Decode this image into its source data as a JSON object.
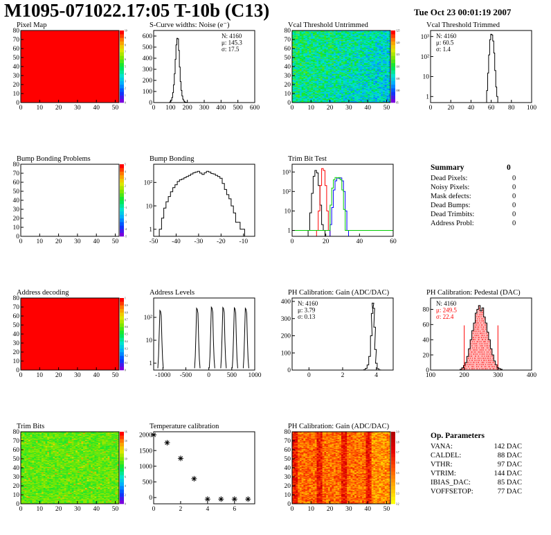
{
  "header": {
    "title": "M1095-071022.17:05 T-10b (C13)",
    "date": "Tue Oct 23 00:01:19 2007"
  },
  "colors": {
    "red": "#ff0000",
    "green": "#00cc00",
    "blue": "#0000ff",
    "black": "#000000",
    "pink_fill": "#ff9999"
  },
  "chart_data": [
    {
      "id": "pixel-map",
      "type": "heatmap",
      "title": "Pixel Map",
      "xlim": [
        0,
        52
      ],
      "ylim": [
        0,
        80
      ],
      "xticks": [
        "0",
        "10",
        "20",
        "30",
        "40",
        "50"
      ],
      "yticks": [
        "0",
        "10",
        "20",
        "30",
        "40",
        "50",
        "60",
        "70",
        "80"
      ],
      "zlim": [
        0,
        10
      ],
      "zticks": [
        "0",
        "1",
        "2",
        "3",
        "4",
        "5",
        "6",
        "7",
        "8",
        "9",
        "10"
      ],
      "fill": "uniform",
      "value": 10
    },
    {
      "id": "scurve-noise",
      "type": "bar",
      "title": "S-Curve widths: Noise (e⁻)",
      "xlim": [
        0,
        600
      ],
      "ylim": [
        0,
        650
      ],
      "xticks": [
        "0",
        "100",
        "200",
        "300",
        "400",
        "500",
        "600"
      ],
      "yticks": [
        "0",
        "100",
        "200",
        "300",
        "400",
        "500",
        "600"
      ],
      "stats": {
        "N": "4160",
        "mean": "145.3",
        "sigma": "17.5"
      },
      "stats_labels": {
        "N": "N: ",
        "mean": "μ: ",
        "sigma": "σ: "
      },
      "x": [
        90,
        95,
        100,
        105,
        110,
        115,
        120,
        125,
        130,
        135,
        140,
        145,
        150,
        155,
        160,
        165,
        170,
        175,
        180,
        185,
        190,
        195,
        200,
        205,
        210
      ],
      "values": [
        0,
        2,
        8,
        20,
        45,
        90,
        160,
        260,
        390,
        520,
        580,
        575,
        470,
        320,
        190,
        110,
        60,
        30,
        14,
        6,
        3,
        1,
        0,
        0,
        0
      ]
    },
    {
      "id": "vcal-untrimmed",
      "type": "heatmap",
      "title": "Vcal Threshold Untrimmed",
      "xlim": [
        0,
        52
      ],
      "ylim": [
        0,
        80
      ],
      "xticks": [
        "0",
        "10",
        "20",
        "30",
        "40",
        "50"
      ],
      "yticks": [
        "0",
        "10",
        "20",
        "30",
        "40",
        "50",
        "60",
        "70",
        "80"
      ],
      "zticks": [
        "95",
        "100",
        "105",
        "110",
        "115",
        "120",
        "125"
      ],
      "fill": "noise",
      "palette": "cyan-green"
    },
    {
      "id": "vcal-trimmed",
      "type": "bar",
      "title": "Vcal Threshold Trimmed",
      "log": true,
      "xlim": [
        0,
        100
      ],
      "ylim": [
        0.5,
        2000
      ],
      "xticks": [
        "0",
        "20",
        "40",
        "60",
        "80",
        "100"
      ],
      "yticks": [
        "1",
        "10",
        "10²",
        "10³"
      ],
      "stats": {
        "N": "4160",
        "mean": "60.5",
        "sigma": "1.4"
      },
      "stats_labels": {
        "N": "N: ",
        "mean": "μ: ",
        "sigma": "σ: "
      },
      "x": [
        56,
        57,
        58,
        59,
        60,
        61,
        62,
        63,
        64,
        65,
        66
      ],
      "values": [
        2,
        15,
        120,
        700,
        1300,
        1200,
        600,
        150,
        20,
        3,
        1
      ]
    },
    {
      "id": "bump-problems",
      "type": "heatmap",
      "title": "Bump Bonding Problems",
      "xlim": [
        0,
        52
      ],
      "ylim": [
        0,
        80
      ],
      "xticks": [
        "0",
        "10",
        "20",
        "30",
        "40",
        "50"
      ],
      "yticks": [
        "0",
        "10",
        "20",
        "30",
        "40",
        "50",
        "60",
        "70",
        "80"
      ],
      "zticks": [
        "-5",
        "-4",
        "-3",
        "-2",
        "-1",
        "0",
        "1",
        "2",
        "3",
        "4",
        "5"
      ],
      "fill": "empty"
    },
    {
      "id": "bump-bonding",
      "type": "bar",
      "title": "Bump Bonding",
      "log": true,
      "xlim": [
        -50,
        -5
      ],
      "ylim": [
        0.5,
        600
      ],
      "xticks": [
        "-50",
        "-40",
        "-30",
        "-20",
        "-10"
      ],
      "yticks": [
        "1",
        "10",
        "10²"
      ],
      "x": [
        -47,
        -46,
        -45,
        -44,
        -43,
        -42,
        -41,
        -40,
        -39,
        -38,
        -37,
        -36,
        -35,
        -34,
        -33,
        -32,
        -31,
        -30,
        -29,
        -28,
        -27,
        -26,
        -25,
        -24,
        -23,
        -22,
        -21,
        -20,
        -19,
        -18,
        -17,
        -16,
        -15,
        -14,
        -13,
        -12,
        -11,
        -10
      ],
      "values": [
        1,
        3,
        8,
        15,
        25,
        40,
        60,
        80,
        110,
        130,
        140,
        160,
        180,
        200,
        230,
        260,
        280,
        300,
        250,
        220,
        260,
        300,
        280,
        240,
        230,
        200,
        180,
        150,
        90,
        50,
        30,
        20,
        10,
        5,
        2,
        2,
        1,
        1
      ]
    },
    {
      "id": "trim-bit-test",
      "type": "line",
      "title": "Trim Bit Test",
      "log": true,
      "xlim": [
        0,
        60
      ],
      "ylim": [
        0.5,
        2500
      ],
      "xticks": [
        "0",
        "20",
        "40",
        "60"
      ],
      "yticks": [
        "1",
        "10",
        "10²",
        "10³"
      ],
      "series": [
        {
          "color": "#000000",
          "x": [
            10,
            11,
            12,
            13,
            14,
            15,
            16,
            17,
            18,
            19
          ],
          "values": [
            1,
            8,
            80,
            600,
            1200,
            900,
            200,
            20,
            2,
            1
          ]
        },
        {
          "color": "#ff0000",
          "x": [
            15,
            16,
            17,
            18,
            19,
            20,
            21,
            22
          ],
          "values": [
            1,
            10,
            200,
            1500,
            1200,
            200,
            10,
            1
          ]
        },
        {
          "color": "#0000ff",
          "x": [
            23,
            24,
            25,
            26,
            27,
            28,
            29,
            30,
            31,
            32,
            33
          ],
          "values": [
            2,
            15,
            120,
            350,
            500,
            480,
            500,
            350,
            100,
            10,
            1
          ]
        },
        {
          "color": "#00cc00",
          "x": [
            0,
            22,
            23,
            24,
            25,
            26,
            27,
            28,
            29,
            30,
            31,
            32,
            33,
            60
          ],
          "values": [
            1,
            1,
            20,
            150,
            400,
            520,
            500,
            520,
            400,
            120,
            12,
            1,
            1,
            1
          ]
        }
      ]
    },
    {
      "id": "address-decoding",
      "type": "heatmap",
      "title": "Address decoding",
      "xlim": [
        0,
        52
      ],
      "ylim": [
        0,
        80
      ],
      "xticks": [
        "0",
        "10",
        "20",
        "30",
        "40",
        "50"
      ],
      "yticks": [
        "0",
        "10",
        "20",
        "30",
        "40",
        "50",
        "60",
        "70",
        "80"
      ],
      "zticks": [
        "0",
        "0.1",
        "0.2",
        "0.3",
        "0.4",
        "0.5",
        "0.6",
        "0.7",
        "0.8",
        "0.9",
        "1"
      ],
      "fill": "uniform",
      "value": 1
    },
    {
      "id": "address-levels",
      "type": "bar",
      "title": "Address Levels",
      "log": true,
      "xlim": [
        -1200,
        1000
      ],
      "ylim": [
        0.5,
        700
      ],
      "xticks": [
        "-1000",
        "-500",
        "0",
        "500",
        "1000"
      ],
      "yticks": [
        "1",
        "10",
        "10²"
      ],
      "peaks": [
        -1050,
        -250,
        70,
        320,
        570,
        810
      ],
      "peak_heights": [
        200,
        250,
        280,
        270,
        260,
        250
      ]
    },
    {
      "id": "ph-gain",
      "type": "bar",
      "title": "PH Calibration: Gain (ADC/DAC)",
      "xlim": [
        -1,
        5
      ],
      "ylim": [
        0,
        420
      ],
      "xticks": [
        "0",
        "2",
        "4"
      ],
      "yticks": [
        "0",
        "100",
        "200",
        "300",
        "400"
      ],
      "stats": {
        "N": "4160",
        "mean": "3.79",
        "sigma": "0.13"
      },
      "stats_labels": {
        "N": "N: ",
        "mean": "μ: ",
        "sigma": "σ: "
      },
      "x": [
        3.3,
        3.4,
        3.5,
        3.6,
        3.7,
        3.75,
        3.8,
        3.85,
        3.9,
        3.95,
        4.0,
        4.1,
        4.2
      ],
      "values": [
        2,
        10,
        30,
        80,
        200,
        330,
        390,
        360,
        250,
        120,
        40,
        8,
        1
      ]
    },
    {
      "id": "ph-pedestal",
      "type": "bar",
      "title": "PH Calibration: Pedestal (DAC)",
      "xlim": [
        100,
        400
      ],
      "ylim": [
        0,
        95
      ],
      "xticks": [
        "100",
        "200",
        "300",
        "400"
      ],
      "yticks": [
        "0",
        "20",
        "40",
        "60",
        "80"
      ],
      "stats": {
        "N": "4160",
        "mean": "249.5",
        "sigma": "22.4"
      },
      "stats_labels": {
        "N": "N: ",
        "mean": "μ: ",
        "sigma": "σ: "
      },
      "cut_lines": [
        200,
        300
      ],
      "x": [
        190,
        195,
        200,
        205,
        210,
        215,
        220,
        225,
        230,
        235,
        240,
        245,
        250,
        255,
        260,
        265,
        270,
        275,
        280,
        285,
        290,
        295,
        300,
        305,
        310
      ],
      "values": [
        1,
        3,
        6,
        10,
        18,
        28,
        40,
        52,
        62,
        75,
        80,
        85,
        78,
        82,
        70,
        62,
        50,
        40,
        28,
        20,
        12,
        7,
        3,
        2,
        1
      ]
    },
    {
      "id": "trim-bits",
      "type": "heatmap",
      "title": "Trim Bits",
      "xlim": [
        0,
        52
      ],
      "ylim": [
        0,
        80
      ],
      "xticks": [
        "0",
        "10",
        "20",
        "30",
        "40",
        "50"
      ],
      "yticks": [
        "0",
        "10",
        "20",
        "30",
        "40",
        "50",
        "60",
        "70",
        "80"
      ],
      "zticks": [
        "0",
        "2",
        "4",
        "6",
        "8",
        "10",
        "12",
        "14",
        "16"
      ],
      "fill": "noise",
      "palette": "green"
    },
    {
      "id": "temperature-calibration",
      "type": "scatter",
      "title": "Temperature calibration",
      "xlim": [
        0,
        7.5
      ],
      "ylim": [
        -200,
        2100
      ],
      "xticks": [
        "0",
        "2",
        "4",
        "6"
      ],
      "yticks": [
        "0",
        "500",
        "1000",
        "1500",
        "2000"
      ],
      "x": [
        0,
        1,
        2,
        3,
        4,
        5,
        6,
        7
      ],
      "values": [
        2000,
        1750,
        1250,
        600,
        -50,
        -50,
        -50,
        -50
      ]
    },
    {
      "id": "ph-gain-map",
      "type": "heatmap",
      "title": "PH Calibration: Gain (ADC/DAC)",
      "xlim": [
        0,
        52
      ],
      "ylim": [
        0,
        80
      ],
      "xticks": [
        "0",
        "10",
        "20",
        "30",
        "40",
        "50"
      ],
      "yticks": [
        "0",
        "10",
        "20",
        "30",
        "40",
        "50",
        "60",
        "70",
        "80"
      ],
      "zticks": [
        "3.2",
        "3.3",
        "3.4",
        "3.5",
        "3.6",
        "3.7",
        "3.8",
        "3.9"
      ],
      "fill": "noise",
      "palette": "hot"
    }
  ],
  "summary": {
    "title": "Summary",
    "total": "0",
    "rows": [
      {
        "label": "Dead Pixels:",
        "value": "0"
      },
      {
        "label": "Noisy Pixels:",
        "value": "0"
      },
      {
        "label": "Mask defects:",
        "value": "0"
      },
      {
        "label": "Dead Bumps:",
        "value": "0"
      },
      {
        "label": "Dead Trimbits:",
        "value": "0"
      },
      {
        "label": "Address Probl:",
        "value": "0"
      }
    ]
  },
  "op_parameters": {
    "title": "Op. Parameters",
    "rows": [
      {
        "label": "VANA:",
        "value": "142 DAC"
      },
      {
        "label": "CALDEL:",
        "value": "88 DAC"
      },
      {
        "label": "VTHR:",
        "value": "97 DAC"
      },
      {
        "label": "VTRIM:",
        "value": "144 DAC"
      },
      {
        "label": "IBIAS_DAC:",
        "value": "85 DAC"
      },
      {
        "label": "VOFFSETOP:",
        "value": "77 DAC"
      }
    ]
  }
}
